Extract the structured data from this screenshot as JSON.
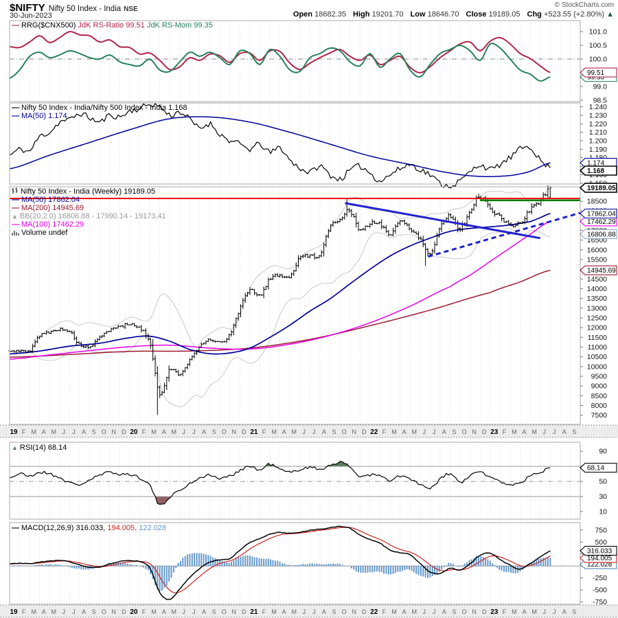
{
  "header": {
    "symbol": "$NIFTY",
    "name": "Nifty 50 Index - India",
    "exchange": "NSE",
    "date": "30-Jun-2023",
    "copyright": "© StockCharts.com",
    "quote": {
      "open_label": "Open",
      "open": "18682.35",
      "high_label": "High",
      "high": "19201.70",
      "low_label": "Low",
      "low": "18646.70",
      "close_label": "Close",
      "close": "19189.05",
      "chg_label": "Chg",
      "chg": "+523.55 (+2.80%)",
      "arrow": "▲"
    }
  },
  "colors": {
    "crimson": "#b2254b",
    "green_rrg": "#26815a",
    "navy": "#000099",
    "magenta": "#e800e8",
    "darkred": "#9b1b30",
    "bb": "#c9c9c9",
    "bar": "#000000",
    "red_line": "#ee0000",
    "green_line": "#007700",
    "trend_blue": "#2222cc",
    "hist": "#6699cc",
    "signal": "#cc2222",
    "macd_line": "#000000",
    "rsi_fill_hi": "#5c7a5c",
    "rsi_fill_lo": "#936066",
    "grid_month": "#dddddd",
    "panel_border": "#a9a9a9",
    "strip_bg": "#ececec",
    "gridline": "#999999",
    "axis_text": "#111111",
    "month_text": "#666666",
    "chg_arrow": "#1f5c50",
    "bb_legend": "#999999",
    "vol_icon": "#555555"
  },
  "legends": {
    "rrg": {
      "name": "RRG($CNX500)",
      "ratio": "JdK RS-Ratio 99.51",
      "mom": "JdK RS-Mom 99.35"
    },
    "ratio": {
      "line1": "Nifty 50 Index - India/Nifty 500 Index - India 1.168",
      "line2": "MA(50) 1.174"
    },
    "main": {
      "price": "Nifty 50 Index - India (Weekly) 19189.05",
      "ma50": "MA(50) 17862.04",
      "ma200": "MA(200) 14945.69",
      "bb": "BB(20,2.0) 16806.88 - 17990.14 - 19173.41",
      "ma100": "MA(100) 17462.29",
      "vol": "Volume undef"
    },
    "rsi": {
      "label": "RSI(14) 68.14"
    },
    "macd": {
      "name": "MACD(12,26,9) 316.033,",
      "signal": " 194.005,",
      "hist": " 122.028"
    }
  },
  "x_axis": {
    "labels": [
      "19",
      "F",
      "M",
      "A",
      "M",
      "J",
      "J",
      "A",
      "S",
      "O",
      "N",
      "D",
      "20",
      "F",
      "M",
      "A",
      "M",
      "J",
      "J",
      "A",
      "S",
      "O",
      "N",
      "D",
      "21",
      "F",
      "M",
      "A",
      "M",
      "J",
      "J",
      "A",
      "S",
      "O",
      "N",
      "D",
      "22",
      "F",
      "M",
      "A",
      "M",
      "J",
      "J",
      "A",
      "S",
      "O",
      "N",
      "D",
      "23",
      "F",
      "M",
      "A",
      "M",
      "J",
      "J",
      "A",
      "S"
    ]
  },
  "chart_data": {
    "rrg": {
      "type": "line",
      "title": "RRG($CNX500)",
      "x_unit": "months_from_Jan_2019",
      "axis": {
        "range": [
          98.45,
          101.4
        ],
        "ticks": [
          "101.0",
          "100.5",
          "100.0",
          "99.5",
          "99.0",
          "98.5"
        ],
        "tags": [
          {
            "t": "99.35",
            "v": 99.35,
            "c": "#26815a"
          },
          {
            "t": "99.51",
            "v": 99.51,
            "c": "#b2254b"
          }
        ],
        "dashdot_at": 100.0
      },
      "series": [
        {
          "name": "JdK RS-Ratio",
          "end_value": 99.51,
          "color_key": "crimson",
          "monthly": [
            100.45,
            100.42,
            100.62,
            100.85,
            100.6,
            100.78,
            101.0,
            100.88,
            100.85,
            100.62,
            100.7,
            100.45,
            100.42,
            100.18,
            100.22,
            99.95,
            99.62,
            99.72,
            100.05,
            99.95,
            100.18,
            100.12,
            99.88,
            100.2,
            100.22,
            99.95,
            100.3,
            100.28,
            99.85,
            99.62,
            99.85,
            100.05,
            100.22,
            100.35,
            100.1,
            99.95,
            100.15,
            99.8,
            99.95,
            100.1,
            99.7,
            99.5,
            99.72,
            100.05,
            100.3,
            100.55,
            100.62,
            100.3,
            100.65,
            100.78,
            100.55,
            100.2,
            100.02,
            99.75,
            99.51
          ]
        },
        {
          "name": "JdK RS-Mom",
          "end_value": 99.35,
          "color_key": "green_rrg",
          "monthly": [
            99.3,
            99.6,
            100.1,
            100.25,
            100.05,
            100.15,
            100.3,
            100.2,
            100.05,
            100.0,
            100.15,
            99.9,
            99.8,
            99.75,
            100.0,
            99.6,
            99.55,
            99.9,
            100.25,
            100.1,
            100.25,
            100.05,
            99.8,
            100.3,
            100.2,
            99.8,
            100.35,
            100.1,
            99.6,
            99.55,
            100.05,
            100.2,
            100.4,
            100.3,
            99.9,
            99.75,
            100.2,
            99.7,
            100.0,
            100.2,
            99.6,
            99.35,
            99.8,
            100.2,
            100.35,
            100.5,
            100.3,
            99.95,
            100.55,
            100.4,
            100.0,
            99.6,
            99.45,
            99.2,
            99.35
          ]
        }
      ]
    },
    "ratio": {
      "type": "line",
      "title": "Nifty 50 Index - India / Nifty 500 Index - India",
      "end_value": 1.168,
      "axis": {
        "range": [
          1.149,
          1.2445
        ],
        "ticks": [
          "1.240",
          "1.230",
          "1.220",
          "1.210",
          "1.200",
          "1.190",
          "1.180",
          "1.170",
          "1.160",
          "1.150"
        ],
        "tags": [
          {
            "t": "1.174",
            "v": 1.174,
            "c": "#000099"
          },
          {
            "t": "1.168",
            "v": 1.168,
            "c": "#000000",
            "bold": true,
            "dy": 4
          }
        ]
      },
      "monthly": [
        1.183,
        1.19,
        1.188,
        1.205,
        1.21,
        1.222,
        1.225,
        1.232,
        1.227,
        1.222,
        1.23,
        1.228,
        1.235,
        1.238,
        1.243,
        1.24,
        1.23,
        1.234,
        1.225,
        1.215,
        1.22,
        1.208,
        1.2,
        1.196,
        1.19,
        1.196,
        1.186,
        1.192,
        1.177,
        1.168,
        1.163,
        1.17,
        1.16,
        1.155,
        1.165,
        1.17,
        1.162,
        1.153,
        1.16,
        1.167,
        1.172,
        1.166,
        1.16,
        1.15,
        1.147,
        1.153,
        1.163,
        1.172,
        1.166,
        1.172,
        1.18,
        1.19,
        1.193,
        1.177,
        1.168
      ],
      "ma50_anchors": [
        [
          0,
          1.167
        ],
        [
          4,
          1.183
        ],
        [
          8,
          1.198
        ],
        [
          12,
          1.213
        ],
        [
          16,
          1.226
        ],
        [
          20,
          1.228
        ],
        [
          24,
          1.222
        ],
        [
          28,
          1.21
        ],
        [
          32,
          1.196
        ],
        [
          36,
          1.182
        ],
        [
          40,
          1.172
        ],
        [
          44,
          1.162
        ],
        [
          47,
          1.158
        ],
        [
          50,
          1.159
        ],
        [
          52,
          1.164
        ],
        [
          54,
          1.174
        ]
      ],
      "ma50_end": 1.174
    },
    "price": {
      "type": "ohlc_weekly",
      "title": "Nifty 50 Index - India (Weekly)",
      "close": 19189.05,
      "axis": {
        "range": [
          7030,
          19240
        ],
        "ticks": [
          "18500",
          "18000",
          "17500",
          "17000",
          "16500",
          "16000",
          "15500",
          "15000",
          "14500",
          "14000",
          "13500",
          "13000",
          "12500",
          "12000",
          "11500",
          "11000",
          "10500",
          "10000",
          "9500",
          "9000",
          "8500",
          "8000",
          "7500"
        ],
        "tags": [
          {
            "t": "14945.69",
            "v": 14945.69,
            "c": "#9b1b30"
          },
          {
            "t": "16806.88",
            "v": 16806.88,
            "c": "#8fa6c4"
          },
          {
            "t": "17462.29",
            "v": 17462.29,
            "c": "#e800e8"
          },
          {
            "t": "17862.04",
            "v": 17862.04,
            "c": "#000099"
          },
          {
            "t": "19189.05",
            "v": 19189.05,
            "c": "#000000",
            "bold": true
          }
        ]
      },
      "monthly_closes": [
        10760,
        10831,
        10793,
        11624,
        11748,
        11923,
        11789,
        11118,
        11023,
        11474,
        11877,
        12056,
        12168,
        11962,
        11202,
        8598,
        9860,
        9580,
        10302,
        11073,
        11388,
        11248,
        11642,
        12969,
        13982,
        13635,
        14529,
        14691,
        14631,
        15583,
        15722,
        15763,
        17132,
        17618,
        18000,
        16983,
        17354,
        17340,
        16794,
        17465,
        17103,
        16585,
        15780,
        17158,
        17759,
        17094,
        18012,
        18758,
        18105,
        17662,
        17304,
        17360,
        18065,
        18534,
        19189.05
      ],
      "low_overrides": [
        {
          "x": 14.8,
          "low": 7511.1
        },
        {
          "x": 41.6,
          "low": 15183.4
        }
      ],
      "high_overrides": [
        {
          "x": 33.6,
          "high": 18604.45
        },
        {
          "x": 46.9,
          "high": 18887.6
        }
      ],
      "last_bar": {
        "open": 18682.35,
        "high": 19201.7,
        "low": 18646.7,
        "close": 19189.05
      },
      "overlays": {
        "ma50_anchors": [
          [
            0,
            10650
          ],
          [
            3,
            10800
          ],
          [
            6,
            11050
          ],
          [
            9,
            11200
          ],
          [
            12,
            11480
          ],
          [
            14,
            11560
          ],
          [
            16,
            11300
          ],
          [
            18,
            10880
          ],
          [
            20,
            10660
          ],
          [
            22,
            10700
          ],
          [
            24,
            10950
          ],
          [
            26,
            11500
          ],
          [
            28,
            12130
          ],
          [
            30,
            12850
          ],
          [
            32,
            13480
          ],
          [
            34,
            14250
          ],
          [
            36,
            15000
          ],
          [
            38,
            15680
          ],
          [
            40,
            16200
          ],
          [
            42,
            16600
          ],
          [
            44,
            16950
          ],
          [
            46,
            17100
          ],
          [
            48,
            17180
          ],
          [
            50,
            17280
          ],
          [
            52,
            17450
          ],
          [
            53,
            17650
          ],
          [
            54,
            17862.04
          ]
        ],
        "ma100_anchors": [
          [
            0,
            10380
          ],
          [
            4,
            10600
          ],
          [
            8,
            10820
          ],
          [
            12,
            11020
          ],
          [
            16,
            11100
          ],
          [
            20,
            10950
          ],
          [
            24,
            10900
          ],
          [
            28,
            11150
          ],
          [
            32,
            11600
          ],
          [
            36,
            12250
          ],
          [
            40,
            13100
          ],
          [
            44,
            14100
          ],
          [
            46,
            14700
          ],
          [
            48,
            15400
          ],
          [
            50,
            16100
          ],
          [
            52,
            16800
          ],
          [
            54,
            17462.29
          ]
        ],
        "ma200_anchors": [
          [
            0,
            10480
          ],
          [
            6,
            10620
          ],
          [
            12,
            10780
          ],
          [
            18,
            10800
          ],
          [
            24,
            10950
          ],
          [
            30,
            11400
          ],
          [
            36,
            12100
          ],
          [
            42,
            12900
          ],
          [
            48,
            13800
          ],
          [
            51,
            14350
          ],
          [
            54,
            14945.69
          ]
        ],
        "bollinger": {
          "period": 20,
          "mult": 2,
          "upper_end": 19173.41,
          "mid_end": 17990.14,
          "lower_end": 16806.88
        }
      },
      "annotations": {
        "red_hline": {
          "value": 18640
        },
        "green_hline": {
          "value": 18540,
          "from_month": 47
        },
        "trend_solid": {
          "from": [
            33.5,
            18400
          ],
          "to": [
            53,
            16600
          ]
        },
        "trend_dashed": {
          "from": [
            41.8,
            15650
          ],
          "to": [
            57,
            17900
          ]
        }
      }
    },
    "rsi": {
      "type": "line",
      "title": "RSI(14)",
      "end_value": 68.14,
      "axis": {
        "range": [
          0,
          102
        ],
        "ticks": [
          "90",
          "70",
          "50",
          "30",
          "10"
        ],
        "tags": [
          {
            "t": "68.14",
            "v": 68.14,
            "c": "#000000"
          }
        ],
        "solid_lines": [
          70,
          30
        ],
        "dashdot_at": 50
      },
      "overbought": 70,
      "oversold": 30,
      "monthly": [
        55,
        60,
        57,
        62,
        60,
        55,
        48,
        46,
        52,
        58,
        62,
        60,
        59,
        55,
        45,
        18,
        30,
        38,
        47,
        55,
        58,
        54,
        57,
        65,
        70,
        65,
        73,
        66,
        62,
        66,
        69,
        66,
        72,
        75,
        69,
        57,
        59,
        57,
        51,
        57,
        53,
        46,
        40,
        53,
        60,
        49,
        57,
        63,
        55,
        50,
        46,
        48,
        57,
        62,
        68.14
      ]
    },
    "macd": {
      "type": "line_histogram",
      "title": "MACD(12,26,9)",
      "macd_end": 316.033,
      "signal_end": 194.005,
      "hist_end": 122.028,
      "axis": {
        "range": [
          -800,
          905
        ],
        "ticks": [
          "750",
          "500",
          "250",
          "0",
          "-250",
          "-500",
          "-750"
        ],
        "tags": [
          {
            "t": "122.028",
            "v": 122.028,
            "c": "#5588bb",
            "dy": 6
          },
          {
            "t": "194.005",
            "v": 194.005,
            "c": "#cc2222",
            "dy": 2
          },
          {
            "t": "316.033",
            "v": 316.033,
            "c": "#000000"
          }
        ],
        "zero_line": 0
      },
      "monthly": [
        40,
        60,
        45,
        80,
        100,
        110,
        85,
        25,
        -35,
        -25,
        45,
        90,
        110,
        85,
        -40,
        -560,
        -700,
        -480,
        -240,
        -50,
        80,
        125,
        155,
        330,
        490,
        570,
        660,
        700,
        680,
        705,
        745,
        765,
        800,
        820,
        785,
        640,
        555,
        470,
        335,
        275,
        235,
        55,
        -125,
        -160,
        -45,
        -85,
        45,
        225,
        265,
        135,
        15,
        -65,
        45,
        185,
        316.033
      ]
    }
  }
}
